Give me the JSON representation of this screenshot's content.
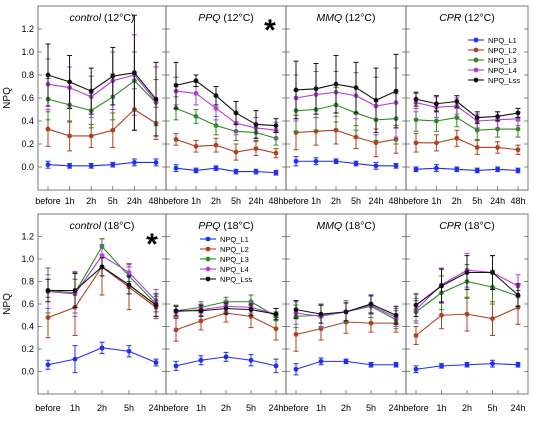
{
  "chart_data": [
    {
      "type": "line",
      "title": "control (12°C)",
      "ylabel": "NPQ",
      "ylim": [
        -0.2,
        1.4
      ],
      "yticks": [
        0.0,
        0.2,
        0.4,
        0.6,
        0.8,
        1.0,
        1.2
      ],
      "x": [
        "before",
        "1h",
        "2h",
        "5h",
        "24h",
        "48h"
      ],
      "significance_mark": "",
      "series": [
        {
          "name": "NPQ_L1",
          "values": [
            0.02,
            0.01,
            0.01,
            0.02,
            0.04,
            0.04
          ],
          "errors": [
            0.03,
            0.02,
            0.02,
            0.02,
            0.03,
            0.03
          ]
        },
        {
          "name": "NPQ_L2",
          "values": [
            0.33,
            0.27,
            0.27,
            0.32,
            0.5,
            0.38
          ],
          "errors": [
            0.15,
            0.13,
            0.1,
            0.15,
            0.18,
            0.14
          ]
        },
        {
          "name": "NPQ_L3",
          "values": [
            0.59,
            0.54,
            0.49,
            0.61,
            0.75,
            0.56
          ],
          "errors": [
            0.18,
            0.15,
            0.15,
            0.2,
            0.25,
            0.2
          ]
        },
        {
          "name": "NPQ_L4",
          "values": [
            0.72,
            0.69,
            0.61,
            0.75,
            0.8,
            0.57
          ],
          "errors": [
            0.22,
            0.18,
            0.18,
            0.25,
            0.35,
            0.3
          ]
        },
        {
          "name": "NPQ_Lss",
          "values": [
            0.8,
            0.74,
            0.66,
            0.79,
            0.82,
            0.59
          ],
          "errors": [
            0.27,
            0.23,
            0.2,
            0.25,
            0.5,
            0.32
          ]
        }
      ]
    },
    {
      "type": "line",
      "title": "PPQ (12°C)",
      "ylabel": "",
      "ylim": [
        -0.2,
        1.4
      ],
      "yticks": [
        0.0,
        0.2,
        0.4,
        0.6,
        0.8,
        1.0,
        1.2
      ],
      "x": [
        "before",
        "1h",
        "2h",
        "5h",
        "24h",
        "48h"
      ],
      "significance_mark": "*",
      "series": [
        {
          "name": "NPQ_L1",
          "values": [
            -0.01,
            -0.03,
            -0.01,
            -0.04,
            -0.04,
            -0.05
          ],
          "errors": [
            0.03,
            0.02,
            0.02,
            0.02,
            0.02,
            0.02
          ]
        },
        {
          "name": "NPQ_L2",
          "values": [
            0.24,
            0.18,
            0.19,
            0.13,
            0.16,
            0.12
          ],
          "errors": [
            0.05,
            0.05,
            0.06,
            0.07,
            0.06,
            0.04
          ]
        },
        {
          "name": "NPQ_L3",
          "values": [
            0.51,
            0.44,
            0.36,
            0.31,
            0.3,
            0.25
          ],
          "errors": [
            0.1,
            0.06,
            0.08,
            0.08,
            0.07,
            0.06
          ]
        },
        {
          "name": "NPQ_L4",
          "values": [
            0.66,
            0.64,
            0.51,
            0.38,
            0.34,
            0.32
          ],
          "errors": [
            0.12,
            0.1,
            0.1,
            0.1,
            0.09,
            0.07
          ]
        },
        {
          "name": "NPQ_Lss",
          "values": [
            0.71,
            0.75,
            0.62,
            0.47,
            0.37,
            0.36
          ],
          "errors": [
            0.2,
            0.05,
            0.08,
            0.1,
            0.12,
            0.06
          ]
        }
      ]
    },
    {
      "type": "line",
      "title": "MMQ (12°C)",
      "ylabel": "",
      "ylim": [
        -0.2,
        1.4
      ],
      "yticks": [
        0.0,
        0.2,
        0.4,
        0.6,
        0.8,
        1.0,
        1.2
      ],
      "x": [
        "before",
        "1h",
        "2h",
        "5h",
        "24h",
        "48h"
      ],
      "significance_mark": "",
      "series": [
        {
          "name": "NPQ_L1",
          "values": [
            0.05,
            0.05,
            0.05,
            0.03,
            0.01,
            0.01
          ],
          "errors": [
            0.04,
            0.03,
            0.02,
            0.02,
            0.03,
            0.02
          ]
        },
        {
          "name": "NPQ_L2",
          "values": [
            0.3,
            0.31,
            0.32,
            0.26,
            0.21,
            0.24
          ],
          "errors": [
            0.15,
            0.12,
            0.12,
            0.1,
            0.12,
            0.12
          ]
        },
        {
          "name": "NPQ_L3",
          "values": [
            0.49,
            0.5,
            0.54,
            0.47,
            0.41,
            0.42
          ],
          "errors": [
            0.18,
            0.18,
            0.15,
            0.15,
            0.18,
            0.22
          ]
        },
        {
          "name": "NPQ_L4",
          "values": [
            0.6,
            0.63,
            0.65,
            0.62,
            0.53,
            0.56
          ],
          "errors": [
            0.2,
            0.2,
            0.18,
            0.2,
            0.25,
            0.3
          ]
        },
        {
          "name": "NPQ_Lss",
          "values": [
            0.67,
            0.68,
            0.72,
            0.69,
            0.58,
            0.66
          ],
          "errors": [
            0.25,
            0.22,
            0.25,
            0.22,
            0.28,
            0.32
          ]
        }
      ]
    },
    {
      "type": "line",
      "title": "CPR (12°C)",
      "ylabel": "",
      "ylim": [
        -0.2,
        1.4
      ],
      "yticks": [
        0.0,
        0.2,
        0.4,
        0.6,
        0.8,
        1.0,
        1.2
      ],
      "x": [
        "before",
        "1h",
        "2h",
        "5h",
        "24h",
        "48h"
      ],
      "significance_mark": "",
      "legend": [
        "NPQ_L1",
        "NPQ_L2",
        "NPQ_L3",
        "NPQ_L4",
        "NPQ_Lss"
      ],
      "legend_position": "top-right",
      "series": [
        {
          "name": "NPQ_L1",
          "values": [
            -0.02,
            -0.01,
            -0.02,
            -0.03,
            -0.02,
            -0.03
          ],
          "errors": [
            0.02,
            0.03,
            0.02,
            0.02,
            0.02,
            0.02
          ]
        },
        {
          "name": "NPQ_L2",
          "values": [
            0.21,
            0.21,
            0.25,
            0.17,
            0.17,
            0.15
          ],
          "errors": [
            0.08,
            0.07,
            0.07,
            0.06,
            0.05,
            0.04
          ]
        },
        {
          "name": "NPQ_L3",
          "values": [
            0.41,
            0.4,
            0.43,
            0.32,
            0.33,
            0.33
          ],
          "errors": [
            0.1,
            0.09,
            0.08,
            0.08,
            0.07,
            0.07
          ]
        },
        {
          "name": "NPQ_L4",
          "values": [
            0.56,
            0.52,
            0.53,
            0.4,
            0.41,
            0.42
          ],
          "errors": [
            0.08,
            0.09,
            0.07,
            0.06,
            0.07,
            0.06
          ]
        },
        {
          "name": "NPQ_Lss",
          "values": [
            0.59,
            0.55,
            0.57,
            0.43,
            0.44,
            0.47
          ],
          "errors": [
            0.06,
            0.07,
            0.05,
            0.05,
            0.04,
            0.04
          ]
        }
      ]
    },
    {
      "type": "line",
      "title": "control (18°C)",
      "ylabel": "NPQ",
      "ylim": [
        -0.2,
        1.4
      ],
      "yticks": [
        0.0,
        0.2,
        0.4,
        0.6,
        0.8,
        1.0,
        1.2
      ],
      "x": [
        "before",
        "1h",
        "2h",
        "5h",
        "24h"
      ],
      "significance_mark": "*",
      "series": [
        {
          "name": "NPQ_L1",
          "values": [
            0.06,
            0.11,
            0.21,
            0.18,
            0.08
          ],
          "errors": [
            0.04,
            0.12,
            0.05,
            0.05,
            0.03
          ]
        },
        {
          "name": "NPQ_L2",
          "values": [
            0.48,
            0.57,
            0.93,
            0.75,
            0.57
          ],
          "errors": [
            0.18,
            0.25,
            0.25,
            0.2,
            0.1
          ]
        },
        {
          "name": "NPQ_L3",
          "values": [
            0.72,
            0.7,
            1.11,
            0.85,
            0.6
          ],
          "errors": [
            0.2,
            0.18,
            0.07,
            0.08,
            0.07
          ]
        },
        {
          "name": "NPQ_L4",
          "values": [
            0.71,
            0.69,
            1.03,
            0.88,
            0.63
          ],
          "errors": [
            0.15,
            0.2,
            0.1,
            0.08,
            0.1
          ]
        },
        {
          "name": "NPQ_Lss",
          "values": [
            0.72,
            0.72,
            0.93,
            0.77,
            0.59
          ],
          "errors": [
            0.1,
            0.15,
            0.08,
            0.08,
            0.1
          ]
        }
      ]
    },
    {
      "type": "line",
      "title": "PPQ (18°C)",
      "ylabel": "",
      "ylim": [
        -0.2,
        1.4
      ],
      "yticks": [
        0.0,
        0.2,
        0.4,
        0.6,
        0.8,
        1.0,
        1.2
      ],
      "x": [
        "before",
        "1h",
        "2h",
        "5h",
        "24h"
      ],
      "significance_mark": "",
      "legend": [
        "NPQ_L1",
        "NPQ_L2",
        "NPQ_L3",
        "NPQ_L4",
        "NPQ_Lss"
      ],
      "legend_position": "top",
      "series": [
        {
          "name": "NPQ_L1",
          "values": [
            0.05,
            0.1,
            0.13,
            0.1,
            0.05
          ],
          "errors": [
            0.04,
            0.04,
            0.04,
            0.05,
            0.06
          ]
        },
        {
          "name": "NPQ_L2",
          "values": [
            0.37,
            0.45,
            0.52,
            0.49,
            0.38
          ],
          "errors": [
            0.1,
            0.08,
            0.08,
            0.1,
            0.1
          ]
        },
        {
          "name": "NPQ_L3",
          "values": [
            0.54,
            0.57,
            0.62,
            0.62,
            0.49
          ],
          "errors": [
            0.05,
            0.05,
            0.04,
            0.06,
            0.04
          ]
        },
        {
          "name": "NPQ_L4",
          "values": [
            0.53,
            0.55,
            0.58,
            0.57,
            0.51
          ],
          "errors": [
            0.05,
            0.05,
            0.05,
            0.05,
            0.05
          ]
        },
        {
          "name": "NPQ_Lss",
          "values": [
            0.54,
            0.54,
            0.56,
            0.55,
            0.51
          ],
          "errors": [
            0.04,
            0.05,
            0.05,
            0.05,
            0.05
          ]
        }
      ]
    },
    {
      "type": "line",
      "title": "MMQ (18°C)",
      "ylabel": "",
      "ylim": [
        -0.2,
        1.4
      ],
      "yticks": [
        0.0,
        0.2,
        0.4,
        0.6,
        0.8,
        1.0,
        1.2
      ],
      "x": [
        "before",
        "1h",
        "2h",
        "5h",
        "24h"
      ],
      "significance_mark": "",
      "series": [
        {
          "name": "NPQ_L1",
          "values": [
            0.02,
            0.09,
            0.09,
            0.06,
            0.06
          ],
          "errors": [
            0.05,
            0.03,
            0.02,
            0.02,
            0.02
          ]
        },
        {
          "name": "NPQ_L2",
          "values": [
            0.33,
            0.38,
            0.44,
            0.43,
            0.43
          ],
          "errors": [
            0.15,
            0.1,
            0.1,
            0.08,
            0.08
          ]
        },
        {
          "name": "NPQ_L3",
          "values": [
            0.49,
            0.5,
            0.53,
            0.58,
            0.46
          ],
          "errors": [
            0.1,
            0.1,
            0.1,
            0.1,
            0.08
          ]
        },
        {
          "name": "NPQ_L4",
          "values": [
            0.52,
            0.49,
            0.53,
            0.59,
            0.48
          ],
          "errors": [
            0.1,
            0.1,
            0.08,
            0.08,
            0.08
          ]
        },
        {
          "name": "NPQ_Lss",
          "values": [
            0.55,
            0.51,
            0.53,
            0.6,
            0.5
          ],
          "errors": [
            0.08,
            0.08,
            0.08,
            0.08,
            0.08
          ]
        }
      ]
    },
    {
      "type": "line",
      "title": "CPR (18°C)",
      "ylabel": "",
      "ylim": [
        -0.2,
        1.4
      ],
      "yticks": [
        0.0,
        0.2,
        0.4,
        0.6,
        0.8,
        1.0,
        1.2
      ],
      "x": [
        "before",
        "1h",
        "2h",
        "5h",
        "24h"
      ],
      "significance_mark": "",
      "series": [
        {
          "name": "NPQ_L1",
          "values": [
            0.02,
            0.05,
            0.06,
            0.07,
            0.06
          ],
          "errors": [
            0.03,
            0.02,
            0.02,
            0.03,
            0.02
          ]
        },
        {
          "name": "NPQ_L2",
          "values": [
            0.32,
            0.5,
            0.51,
            0.47,
            0.57
          ],
          "errors": [
            0.08,
            0.12,
            0.15,
            0.15,
            0.15
          ]
        },
        {
          "name": "NPQ_L3",
          "values": [
            0.53,
            0.7,
            0.8,
            0.75,
            0.67
          ],
          "errors": [
            0.1,
            0.15,
            0.15,
            0.15,
            0.1
          ]
        },
        {
          "name": "NPQ_L4",
          "values": [
            0.55,
            0.77,
            0.9,
            0.88,
            0.76
          ],
          "errors": [
            0.1,
            0.15,
            0.15,
            0.15,
            0.1
          ]
        },
        {
          "name": "NPQ_Lss",
          "values": [
            0.59,
            0.76,
            0.88,
            0.88,
            0.68
          ],
          "errors": [
            0.1,
            0.15,
            0.15,
            0.15,
            0.1
          ]
        }
      ]
    }
  ],
  "colors": {
    "NPQ_L1": "#1f2ff0",
    "NPQ_L2": "#b0401f",
    "NPQ_L3": "#2e8a22",
    "NPQ_L4": "#b23ce0",
    "NPQ_Lss": "#111111"
  }
}
